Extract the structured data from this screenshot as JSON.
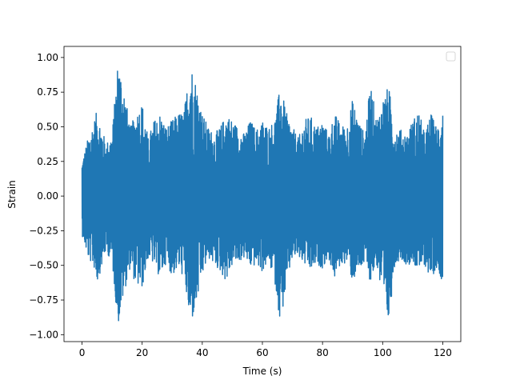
{
  "chart_data": {
    "type": "line",
    "title": "",
    "xlabel": "Time (s)",
    "ylabel": "Strain",
    "xlim": [
      -6,
      126
    ],
    "ylim": [
      -1.05,
      1.08
    ],
    "x_ticks": [
      0,
      20,
      40,
      60,
      80,
      100,
      120
    ],
    "y_ticks": [
      -1.0,
      -0.75,
      -0.5,
      -0.25,
      0.0,
      0.25,
      0.5,
      0.75,
      1.0
    ],
    "x_tick_labels": [
      "0",
      "20",
      "40",
      "60",
      "80",
      "100",
      "120"
    ],
    "y_tick_labels": [
      "−1.00",
      "−0.75",
      "−0.50",
      "−0.25",
      "0.00",
      "0.25",
      "0.50",
      "0.75",
      "1.00"
    ],
    "grid": false,
    "legend": {
      "placement": "top-right",
      "entries": []
    },
    "series": [
      {
        "color": "#1f77b4",
        "x_range": [
          0,
          120
        ],
        "description_values": [
          [
            0,
            0.25,
            -0.28
          ],
          [
            2,
            0.42,
            -0.45
          ],
          [
            4,
            0.55,
            -0.52
          ],
          [
            5,
            0.62,
            -0.63
          ],
          [
            8,
            0.38,
            -0.4
          ],
          [
            10,
            0.45,
            -0.48
          ],
          [
            12,
            1.0,
            -0.94
          ],
          [
            14,
            0.78,
            -0.7
          ],
          [
            16,
            0.5,
            -0.52
          ],
          [
            18,
            0.6,
            -0.65
          ],
          [
            20,
            0.68,
            -0.67
          ],
          [
            22,
            0.42,
            -0.45
          ],
          [
            24,
            0.55,
            -0.5
          ],
          [
            26,
            0.6,
            -0.6
          ],
          [
            28,
            0.5,
            -0.48
          ],
          [
            30,
            0.55,
            -0.58
          ],
          [
            32,
            0.6,
            -0.52
          ],
          [
            34,
            0.62,
            -0.6
          ],
          [
            36,
            0.98,
            -0.95
          ],
          [
            38,
            0.82,
            -0.8
          ],
          [
            40,
            0.6,
            -0.58
          ],
          [
            42,
            0.5,
            -0.45
          ],
          [
            44,
            0.45,
            -0.5
          ],
          [
            46,
            0.5,
            -0.55
          ],
          [
            48,
            0.6,
            -0.62
          ],
          [
            50,
            0.55,
            -0.5
          ],
          [
            52,
            0.5,
            -0.48
          ],
          [
            54,
            0.45,
            -0.45
          ],
          [
            56,
            0.55,
            -0.52
          ],
          [
            58,
            0.48,
            -0.5
          ],
          [
            60,
            0.55,
            -0.55
          ],
          [
            62,
            0.5,
            -0.48
          ],
          [
            64,
            0.55,
            -0.6
          ],
          [
            66,
            0.8,
            -0.93
          ],
          [
            68,
            0.6,
            -0.65
          ],
          [
            70,
            0.5,
            -0.45
          ],
          [
            72,
            0.42,
            -0.45
          ],
          [
            74,
            0.55,
            -0.5
          ],
          [
            76,
            0.58,
            -0.55
          ],
          [
            78,
            0.5,
            -0.5
          ],
          [
            80,
            0.55,
            -0.52
          ],
          [
            82,
            0.45,
            -0.45
          ],
          [
            84,
            0.6,
            -0.6
          ],
          [
            86,
            0.52,
            -0.5
          ],
          [
            88,
            0.5,
            -0.48
          ],
          [
            90,
            0.7,
            -0.62
          ],
          [
            92,
            0.55,
            -0.55
          ],
          [
            94,
            0.45,
            -0.5
          ],
          [
            96,
            0.82,
            -0.62
          ],
          [
            98,
            0.55,
            -0.5
          ],
          [
            100,
            0.7,
            -0.78
          ],
          [
            102,
            0.8,
            -0.93
          ],
          [
            104,
            0.5,
            -0.5
          ],
          [
            106,
            0.48,
            -0.45
          ],
          [
            108,
            0.45,
            -0.5
          ],
          [
            110,
            0.55,
            -0.48
          ],
          [
            112,
            0.62,
            -0.55
          ],
          [
            114,
            0.45,
            -0.5
          ],
          [
            116,
            0.6,
            -0.6
          ],
          [
            118,
            0.5,
            -0.52
          ],
          [
            120,
            0.64,
            -0.62
          ]
        ]
      }
    ]
  }
}
